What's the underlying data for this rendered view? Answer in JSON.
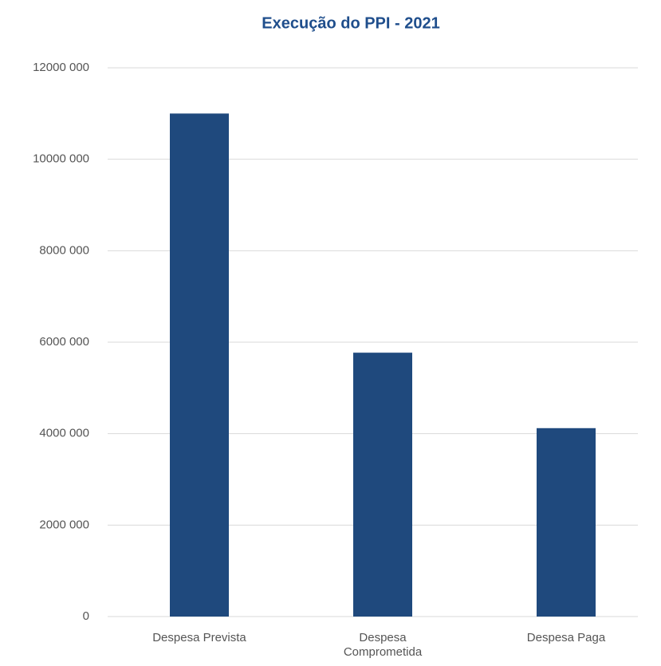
{
  "chart_data": {
    "type": "bar",
    "title": "Execução do PPI - 2021",
    "categories": [
      "Despesa Prevista",
      "Despesa Comprometida",
      "Despesa Paga"
    ],
    "values": [
      11000000,
      5770000,
      4120000
    ],
    "color": "#1f497d",
    "ylim": [
      0,
      12000000
    ],
    "yticks": [
      0,
      {
        "value": 2000000,
        "label": "2000 000"
      },
      {
        "value": 4000000,
        "label": "4000 000"
      },
      {
        "value": 6000000,
        "label": "6000 000"
      },
      {
        "value": 8000000,
        "label": "8000 000"
      },
      {
        "value": 10000000,
        "label": "10000 000"
      },
      {
        "value": 12000000,
        "label": "12000 000"
      }
    ],
    "grid": true
  }
}
